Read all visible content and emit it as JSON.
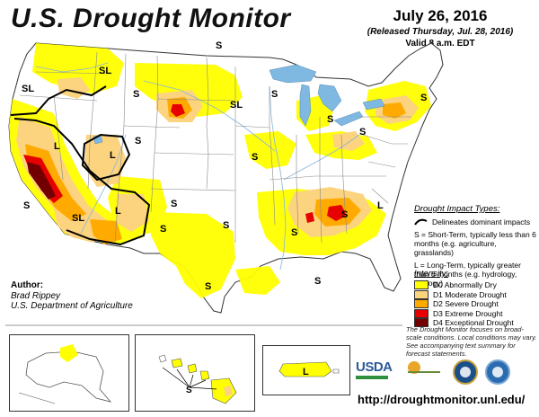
{
  "header": {
    "title": "U.S. Drought Monitor",
    "date": "July 26, 2016",
    "released": "(Released Thursday, Jul. 28, 2016)",
    "valid": "Valid 8 a.m. EDT"
  },
  "map_labels": [
    "SL",
    "SL",
    "S",
    "S",
    "SL",
    "S",
    "L",
    "L",
    "S",
    "S",
    "S",
    "SL",
    "L",
    "S",
    "S",
    "S",
    "S",
    "S",
    "S",
    "S",
    "S",
    "S",
    "S",
    "L"
  ],
  "impact_types": {
    "heading": "Drought Impact Types:",
    "dominant": "Delineates dominant impacts",
    "short_term": "S = Short-Term, typically less than 6 months (e.g. agriculture, grasslands)",
    "long_term": "L = Long-Term, typically greater than 6 months (e.g. hydrology, ecology)"
  },
  "intensity": {
    "heading": "Intensity:",
    "levels": [
      {
        "label": "D0 Abnormally Dry",
        "color": "#ffff00"
      },
      {
        "label": "D1 Moderate Drought",
        "color": "#fcd37f"
      },
      {
        "label": "D2 Severe Drought",
        "color": "#ffaa00"
      },
      {
        "label": "D3 Extreme Drought",
        "color": "#e60000"
      },
      {
        "label": "D4 Exceptional Drought",
        "color": "#730000"
      }
    ]
  },
  "note": "The Drought Monitor focuses on broad-scale conditions. Local conditions may vary. See accompanying text summary for forecast statements.",
  "author": {
    "heading": "Author:",
    "name": "Brad Rippey",
    "org": "U.S. Department of Agriculture"
  },
  "logos": {
    "usda": "USDA",
    "ndmc": "National Drought Mitigation Center"
  },
  "url": "http://droughtmonitor.unl.edu/",
  "colors": {
    "state_border": "#888888",
    "lake": "#7fb8e0",
    "river": "#88b4d8",
    "impact_line": "#000000"
  }
}
